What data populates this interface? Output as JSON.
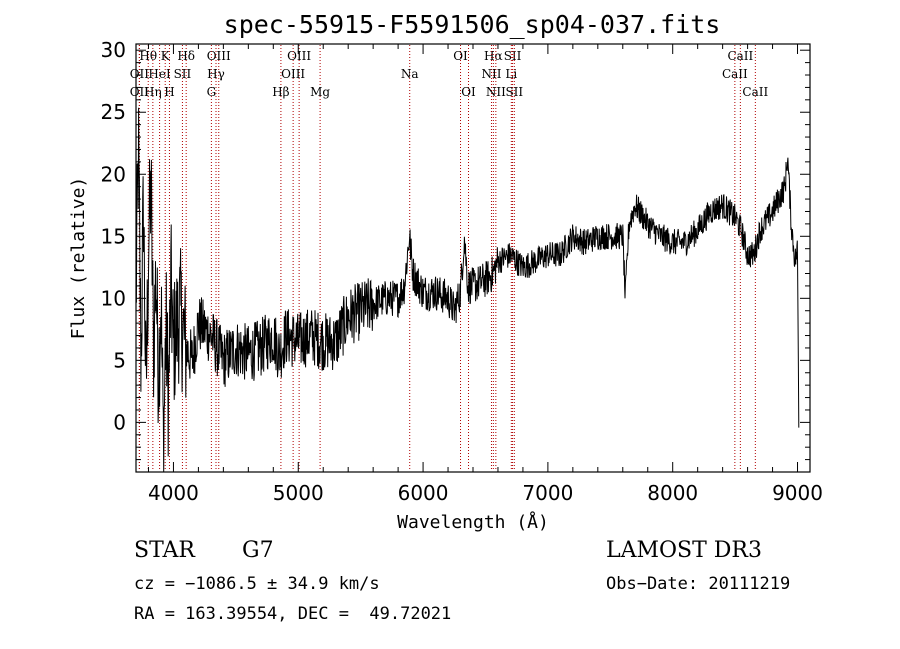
{
  "chart_data": {
    "type": "line",
    "title": "spec-55915-F5591506_sp04-037.fits",
    "xlabel": "Wavelength (Å)",
    "ylabel": "Flux (relative)",
    "xlim": [
      3700,
      9100
    ],
    "ylim": [
      -4,
      30.5
    ],
    "xticks": [
      4000,
      5000,
      6000,
      7000,
      8000,
      9000
    ],
    "yticks": [
      0,
      5,
      10,
      15,
      20,
      25,
      30
    ],
    "grid": false,
    "series": [
      {
        "name": "spectrum",
        "color": "#000000",
        "anchors": [
          [
            3700,
            10
          ],
          [
            3720,
            22
          ],
          [
            3740,
            5
          ],
          [
            3760,
            18
          ],
          [
            3780,
            2
          ],
          [
            3800,
            14
          ],
          [
            3820,
            19
          ],
          [
            3840,
            6
          ],
          [
            3860,
            12
          ],
          [
            3880,
            4
          ],
          [
            3900,
            10
          ],
          [
            3920,
            -2
          ],
          [
            3940,
            8
          ],
          [
            3960,
            2
          ],
          [
            3980,
            11
          ],
          [
            4000,
            6
          ],
          [
            4050,
            9
          ],
          [
            4100,
            6
          ],
          [
            4150,
            5
          ],
          [
            4200,
            8
          ],
          [
            4300,
            7
          ],
          [
            4400,
            5
          ],
          [
            4500,
            6
          ],
          [
            4600,
            5.5
          ],
          [
            4700,
            6
          ],
          [
            4800,
            7
          ],
          [
            4850,
            5.5
          ],
          [
            4900,
            7
          ],
          [
            5000,
            6.5
          ],
          [
            5100,
            7
          ],
          [
            5200,
            6.5
          ],
          [
            5300,
            6.5
          ],
          [
            5400,
            8.5
          ],
          [
            5500,
            9
          ],
          [
            5600,
            9.5
          ],
          [
            5700,
            10
          ],
          [
            5800,
            10
          ],
          [
            5850,
            11
          ],
          [
            5890,
            15
          ],
          [
            5920,
            12
          ],
          [
            6000,
            10.5
          ],
          [
            6100,
            10.5
          ],
          [
            6200,
            10
          ],
          [
            6250,
            9
          ],
          [
            6300,
            10.5
          ],
          [
            6330,
            15
          ],
          [
            6360,
            11
          ],
          [
            6400,
            11
          ],
          [
            6500,
            11.5
          ],
          [
            6560,
            12
          ],
          [
            6600,
            13
          ],
          [
            6700,
            13.5
          ],
          [
            6800,
            12.5
          ],
          [
            6900,
            13
          ],
          [
            7000,
            13.5
          ],
          [
            7100,
            13.5
          ],
          [
            7200,
            15
          ],
          [
            7300,
            14.5
          ],
          [
            7400,
            15
          ],
          [
            7500,
            15
          ],
          [
            7600,
            15
          ],
          [
            7620,
            10
          ],
          [
            7650,
            16
          ],
          [
            7700,
            17.5
          ],
          [
            7800,
            16
          ],
          [
            7900,
            15
          ],
          [
            8000,
            14.5
          ],
          [
            8100,
            14.5
          ],
          [
            8200,
            15.5
          ],
          [
            8300,
            17
          ],
          [
            8400,
            17.5
          ],
          [
            8500,
            16.5
          ],
          [
            8550,
            15.5
          ],
          [
            8600,
            13.5
          ],
          [
            8650,
            13.5
          ],
          [
            8700,
            15.5
          ],
          [
            8800,
            17
          ],
          [
            8900,
            19
          ],
          [
            8920,
            21.5
          ],
          [
            8950,
            16
          ],
          [
            8980,
            13
          ],
          [
            9000,
            14
          ],
          [
            9010,
            0
          ]
        ]
      }
    ],
    "spectral_lines": [
      {
        "label": "Hθ",
        "x": 3798,
        "row": 1
      },
      {
        "label": "OII",
        "x": 3727,
        "row": 2
      },
      {
        "label": "OII",
        "x": 3727,
        "row": 3
      },
      {
        "label": "Hη",
        "x": 3835,
        "row": 3
      },
      {
        "label": "HeI",
        "x": 3889,
        "row": 2
      },
      {
        "label": "K",
        "x": 3934,
        "row": 1
      },
      {
        "label": "H",
        "x": 3968,
        "row": 3
      },
      {
        "label": "SII",
        "x": 4072,
        "row": 2
      },
      {
        "label": "Hδ",
        "x": 4102,
        "row": 1
      },
      {
        "label": "OIII",
        "x": 4363,
        "row": 1
      },
      {
        "label": "Hγ",
        "x": 4341,
        "row": 2
      },
      {
        "label": "G",
        "x": 4304,
        "row": 3
      },
      {
        "label": "Hβ",
        "x": 4861,
        "row": 3
      },
      {
        "label": "OIII",
        "x": 5007,
        "row": 1
      },
      {
        "label": "OIII",
        "x": 4959,
        "row": 2
      },
      {
        "label": "Mg",
        "x": 5175,
        "row": 3
      },
      {
        "label": "Na",
        "x": 5893,
        "row": 2
      },
      {
        "label": "OI",
        "x": 6300,
        "row": 1
      },
      {
        "label": "OI",
        "x": 6364,
        "row": 3
      },
      {
        "label": "Hα",
        "x": 6563,
        "row": 1
      },
      {
        "label": "SII",
        "x": 6717,
        "row": 1
      },
      {
        "label": "NII",
        "x": 6548,
        "row": 2
      },
      {
        "label": "Li",
        "x": 6707,
        "row": 2
      },
      {
        "label": "NII",
        "x": 6583,
        "row": 3
      },
      {
        "label": "SII",
        "x": 6731,
        "row": 3
      },
      {
        "label": "CaII",
        "x": 8542,
        "row": 1
      },
      {
        "label": "CaII",
        "x": 8498,
        "row": 2
      },
      {
        "label": "CaII",
        "x": 8662,
        "row": 3
      }
    ]
  },
  "info": {
    "object_class": "STAR",
    "subclass": "G7",
    "survey": "LAMOST DR3",
    "cz": "cz = −1086.5 ± 34.9 km/s",
    "obs_date": "Obs−Date: 20111219",
    "coords": "RA = 163.39554, DEC =  49.72021"
  }
}
